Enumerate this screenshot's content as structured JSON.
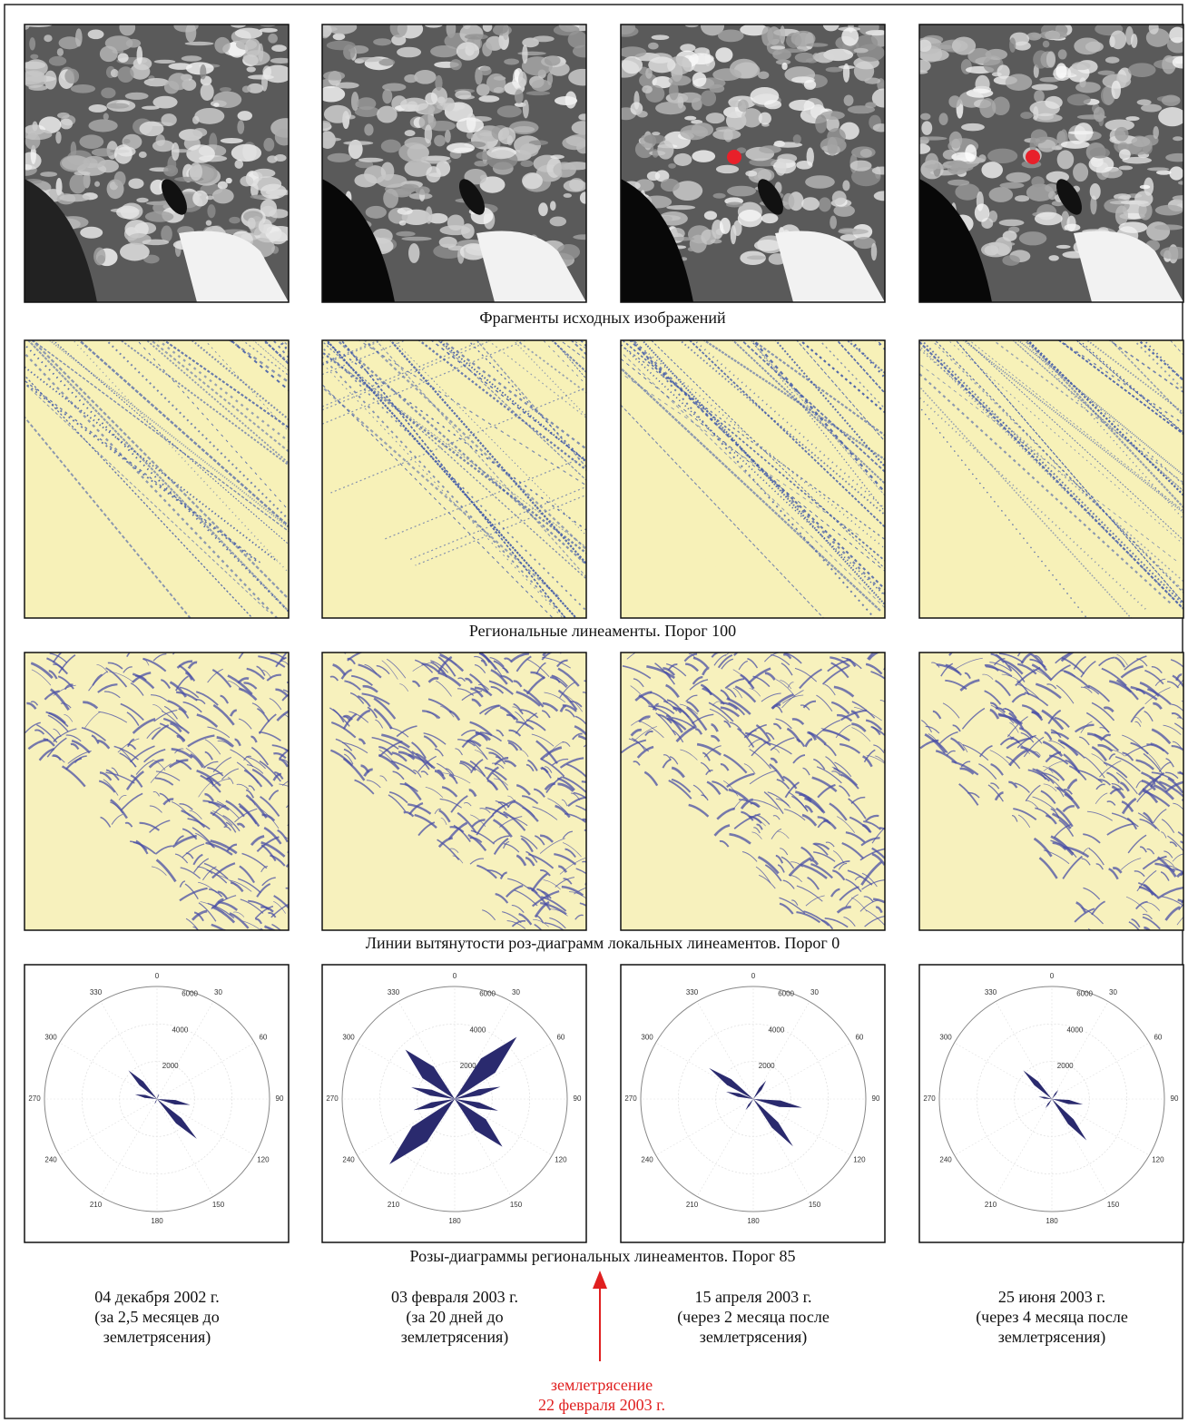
{
  "rows": [
    {
      "caption": "Фрагменты исходных изображений"
    },
    {
      "caption": "Региональные линеаменты. Порог 100"
    },
    {
      "caption": "Линии вытянутости роз-диаграмм локальных линеаментов. Порог 0"
    },
    {
      "caption": "Розы-диаграммы региональных линеаментов. Порог 85"
    }
  ],
  "rose_labels": {
    "angles": [
      "0",
      "30",
      "60",
      "90",
      "120",
      "150",
      "180",
      "210",
      "240",
      "270",
      "300",
      "330"
    ],
    "radii": [
      "2000",
      "4000",
      "6000"
    ]
  },
  "dates": [
    {
      "lines": [
        "04 декабря 2002 г.",
        "(за 2,5 месяцев до",
        "землетрясения)"
      ]
    },
    {
      "lines": [
        "03 февраля 2003 г.",
        "(за 20 дней до",
        "землетрясения)"
      ]
    },
    {
      "lines": [
        "15 апреля 2003 г.",
        "(через 2 месяца после",
        "землетрясения)"
      ]
    },
    {
      "lines": [
        "25 июня 2003 г.",
        "(через 4 месяца после",
        "землетрясения)"
      ]
    }
  ],
  "event": {
    "lines": [
      "землетрясение",
      "22 февраля 2003 г."
    ]
  }
}
